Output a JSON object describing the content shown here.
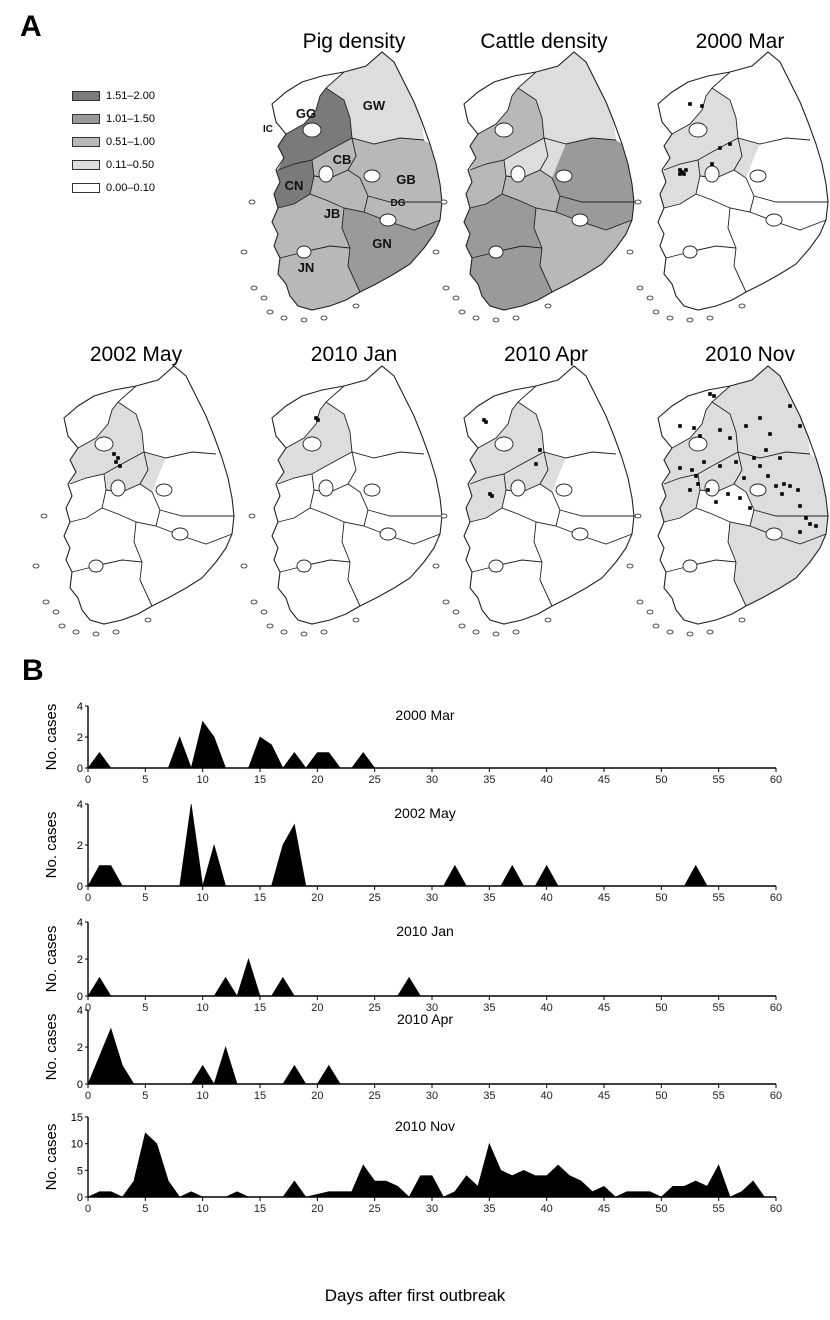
{
  "panel_a_label": "A",
  "panel_b_label": "B",
  "legend": {
    "items": [
      {
        "label": "1.51–2.00",
        "color": "#7a7a7a"
      },
      {
        "label": "1.01–1.50",
        "color": "#9a9a9a"
      },
      {
        "label": "0.51–1.00",
        "color": "#b8b8b8"
      },
      {
        "label": "0.11–0.50",
        "color": "#dddddd"
      },
      {
        "label": "0.00–0.10",
        "color": "#ffffff"
      }
    ]
  },
  "maps": [
    {
      "title": "Pig density",
      "regions": [
        "GG",
        "GW",
        "CN",
        "CB",
        "GB",
        "JB",
        "GN",
        "JN",
        "IC",
        "DG"
      ]
    },
    {
      "title": "Cattle density"
    },
    {
      "title": "2000 Mar"
    },
    {
      "title": "2002 May"
    },
    {
      "title": "2010 Jan"
    },
    {
      "title": "2010 Apr"
    },
    {
      "title": "2010 Nov"
    }
  ],
  "x_axis_label": "Days after first outbreak",
  "y_axis_label": "No. cases",
  "chart_data": [
    {
      "type": "area",
      "label": "2000 Mar",
      "ylim": [
        0,
        4
      ],
      "yticks": [
        0,
        2,
        4
      ],
      "xlim": [
        0,
        60
      ],
      "xticks": [
        0,
        5,
        10,
        15,
        20,
        25,
        30,
        35,
        40,
        45,
        50,
        55,
        60
      ],
      "points": [
        [
          0,
          0
        ],
        [
          1,
          1
        ],
        [
          2,
          0
        ],
        [
          7,
          0
        ],
        [
          8,
          2
        ],
        [
          9,
          0
        ],
        [
          10,
          3
        ],
        [
          11,
          2
        ],
        [
          12,
          0
        ],
        [
          14,
          0
        ],
        [
          15,
          2
        ],
        [
          16,
          1.5
        ],
        [
          17,
          0
        ],
        [
          18,
          1
        ],
        [
          19,
          0
        ],
        [
          20,
          1
        ],
        [
          21,
          1
        ],
        [
          22,
          0
        ],
        [
          23,
          0
        ],
        [
          24,
          1
        ],
        [
          25,
          0
        ],
        [
          60,
          0
        ]
      ]
    },
    {
      "type": "area",
      "label": "2002 May",
      "ylim": [
        0,
        4
      ],
      "yticks": [
        0,
        2,
        4
      ],
      "xlim": [
        0,
        60
      ],
      "xticks": [
        0,
        5,
        10,
        15,
        20,
        25,
        30,
        35,
        40,
        45,
        50,
        55,
        60
      ],
      "points": [
        [
          0,
          0
        ],
        [
          1,
          1
        ],
        [
          2,
          1
        ],
        [
          3,
          0
        ],
        [
          8,
          0
        ],
        [
          9,
          4
        ],
        [
          10,
          0
        ],
        [
          11,
          2
        ],
        [
          12,
          0
        ],
        [
          16,
          0
        ],
        [
          17,
          2
        ],
        [
          18,
          3
        ],
        [
          19,
          0
        ],
        [
          31,
          0
        ],
        [
          32,
          1
        ],
        [
          33,
          0
        ],
        [
          36,
          0
        ],
        [
          37,
          1
        ],
        [
          38,
          0
        ],
        [
          39,
          0
        ],
        [
          40,
          1
        ],
        [
          41,
          0
        ],
        [
          52,
          0
        ],
        [
          53,
          1
        ],
        [
          54,
          0
        ],
        [
          60,
          0
        ]
      ]
    },
    {
      "type": "area",
      "label": "2010 Jan",
      "ylim": [
        0,
        4
      ],
      "yticks": [
        0,
        2,
        4
      ],
      "xlim": [
        0,
        60
      ],
      "xticks": [
        0,
        5,
        10,
        15,
        20,
        25,
        30,
        35,
        40,
        45,
        50,
        55,
        60
      ],
      "points": [
        [
          0,
          0
        ],
        [
          1,
          1
        ],
        [
          2,
          0
        ],
        [
          11,
          0
        ],
        [
          12,
          1
        ],
        [
          13,
          0
        ],
        [
          14,
          2
        ],
        [
          15,
          0
        ],
        [
          16,
          0
        ],
        [
          17,
          1
        ],
        [
          18,
          0
        ],
        [
          27,
          0
        ],
        [
          28,
          1
        ],
        [
          29,
          0
        ],
        [
          60,
          0
        ]
      ]
    },
    {
      "type": "area",
      "label": "2010 Apr",
      "ylim": [
        0,
        4
      ],
      "yticks": [
        0,
        2,
        4
      ],
      "xlim": [
        0,
        60
      ],
      "xticks": [
        0,
        5,
        10,
        15,
        20,
        25,
        30,
        35,
        40,
        45,
        50,
        55,
        60
      ],
      "points": [
        [
          0,
          0
        ],
        [
          1,
          1.5
        ],
        [
          2,
          3
        ],
        [
          3,
          1
        ],
        [
          4,
          0
        ],
        [
          9,
          0
        ],
        [
          10,
          1
        ],
        [
          11,
          0
        ],
        [
          12,
          2
        ],
        [
          13,
          0
        ],
        [
          17,
          0
        ],
        [
          18,
          1
        ],
        [
          19,
          0
        ],
        [
          20,
          0
        ],
        [
          21,
          1
        ],
        [
          22,
          0
        ],
        [
          60,
          0
        ]
      ]
    },
    {
      "type": "area",
      "label": "2010 Nov",
      "ylim": [
        0,
        15
      ],
      "yticks": [
        0,
        5,
        10,
        15
      ],
      "xlim": [
        0,
        60
      ],
      "xticks": [
        0,
        5,
        10,
        15,
        20,
        25,
        30,
        35,
        40,
        45,
        50,
        55,
        60
      ],
      "points": [
        [
          0,
          0
        ],
        [
          1,
          1
        ],
        [
          2,
          1
        ],
        [
          3,
          0
        ],
        [
          4,
          3
        ],
        [
          5,
          12
        ],
        [
          6,
          10
        ],
        [
          7,
          3
        ],
        [
          8,
          0
        ],
        [
          9,
          1
        ],
        [
          10,
          0
        ],
        [
          12,
          0
        ],
        [
          13,
          1
        ],
        [
          14,
          0
        ],
        [
          17,
          0
        ],
        [
          18,
          3
        ],
        [
          19,
          0
        ],
        [
          21,
          1
        ],
        [
          22,
          1
        ],
        [
          23,
          1
        ],
        [
          24,
          6
        ],
        [
          25,
          3
        ],
        [
          26,
          3
        ],
        [
          27,
          2
        ],
        [
          28,
          0
        ],
        [
          29,
          4
        ],
        [
          30,
          4
        ],
        [
          31,
          0
        ],
        [
          32,
          1
        ],
        [
          33,
          4
        ],
        [
          34,
          2
        ],
        [
          35,
          10
        ],
        [
          36,
          5
        ],
        [
          37,
          4
        ],
        [
          38,
          5
        ],
        [
          39,
          4
        ],
        [
          40,
          4
        ],
        [
          41,
          6
        ],
        [
          42,
          4
        ],
        [
          43,
          3
        ],
        [
          44,
          1
        ],
        [
          45,
          2
        ],
        [
          46,
          0
        ],
        [
          47,
          1
        ],
        [
          48,
          1
        ],
        [
          49,
          1
        ],
        [
          50,
          0
        ],
        [
          51,
          2
        ],
        [
          52,
          2
        ],
        [
          53,
          3
        ],
        [
          54,
          2
        ],
        [
          55,
          6
        ],
        [
          56,
          0
        ],
        [
          57,
          1
        ],
        [
          58,
          3
        ],
        [
          59,
          0
        ],
        [
          60,
          0
        ]
      ]
    }
  ]
}
